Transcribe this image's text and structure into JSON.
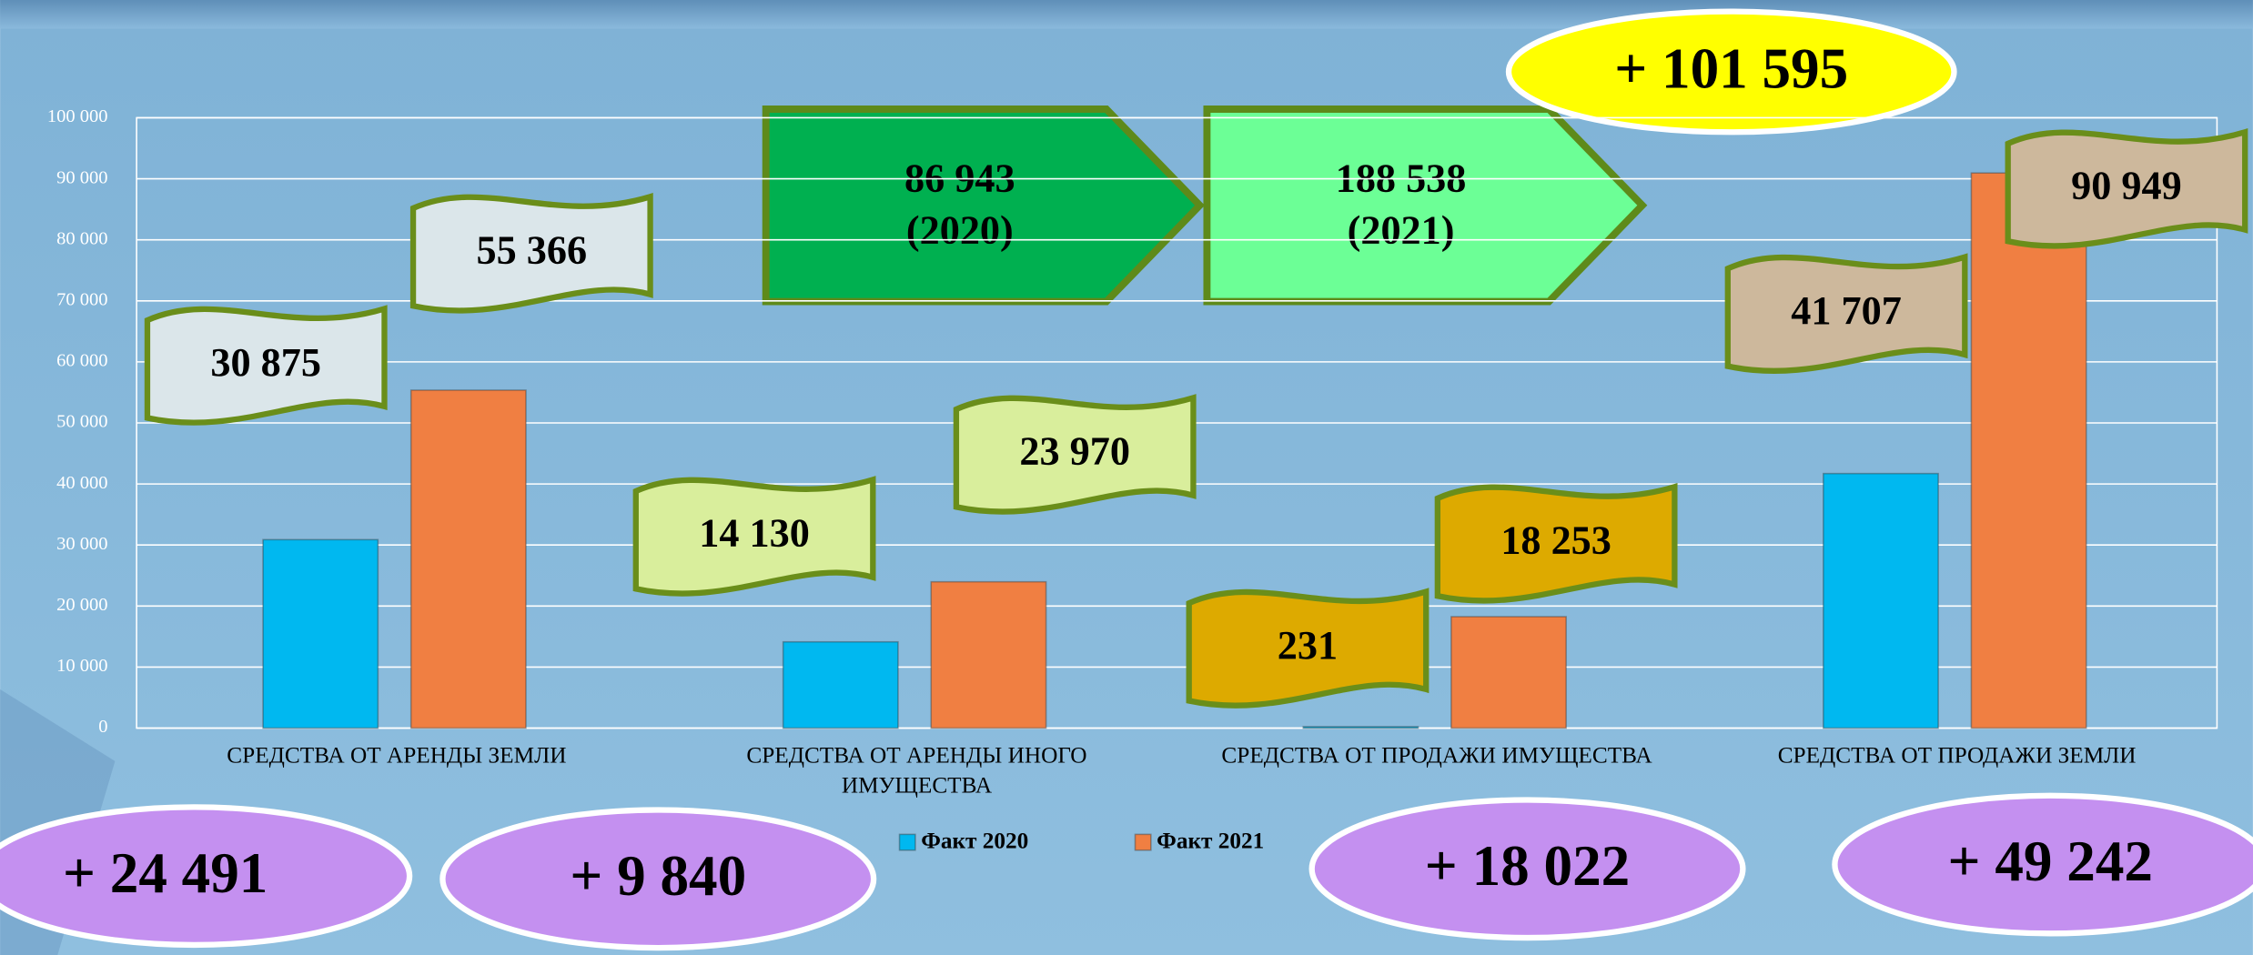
{
  "chart_data": {
    "type": "bar",
    "categories": [
      "СРЕДСТВА ОТ АРЕНДЫ ЗЕМЛИ",
      "СРЕДСТВА ОТ АРЕНДЫ ИНОГО ИМУЩЕСТВА",
      "СРЕДСТВА ОТ ПРОДАЖИ ИМУЩЕСТВА",
      "СРЕДСТВА ОТ ПРОДАЖИ ЗЕМЛИ"
    ],
    "series": [
      {
        "name": "Факт 2020",
        "color": "#00b8f0",
        "values": [
          30875,
          14130,
          231,
          41707
        ],
        "value_labels": [
          "30 875",
          "14 130",
          "231",
          "41 707"
        ]
      },
      {
        "name": "Факт 2021",
        "color": "#f07f42",
        "values": [
          55366,
          23970,
          18253,
          90949
        ],
        "value_labels": [
          "55 366",
          "23 970",
          "18 253",
          "90 949"
        ]
      }
    ],
    "ylim": [
      0,
      100000
    ],
    "yticks": [
      0,
      {
        "value": 10000,
        "label": "10 000"
      },
      {
        "value": 20000,
        "label": "20 000"
      },
      {
        "value": 30000,
        "label": "30 000"
      },
      {
        "value": 40000,
        "label": "40 000"
      },
      {
        "value": 50000,
        "label": "50 000"
      },
      {
        "value": 60000,
        "label": "60 000"
      },
      {
        "value": 70000,
        "label": "70 000"
      },
      {
        "value": 80000,
        "label": "80 000"
      },
      {
        "value": 90000,
        "label": "90 000"
      },
      {
        "value": 100000,
        "label": "100 000"
      }
    ],
    "grid": true,
    "legend": "bottom",
    "differences": [
      "+ 24 491",
      "+ 9 840",
      "+ 18 022",
      "+ 49 242"
    ],
    "total_difference": "+ 101 595",
    "totals": [
      {
        "label": "86 943",
        "period": "(2020)"
      },
      {
        "label": "188 538",
        "period": "(2021)"
      }
    ]
  }
}
